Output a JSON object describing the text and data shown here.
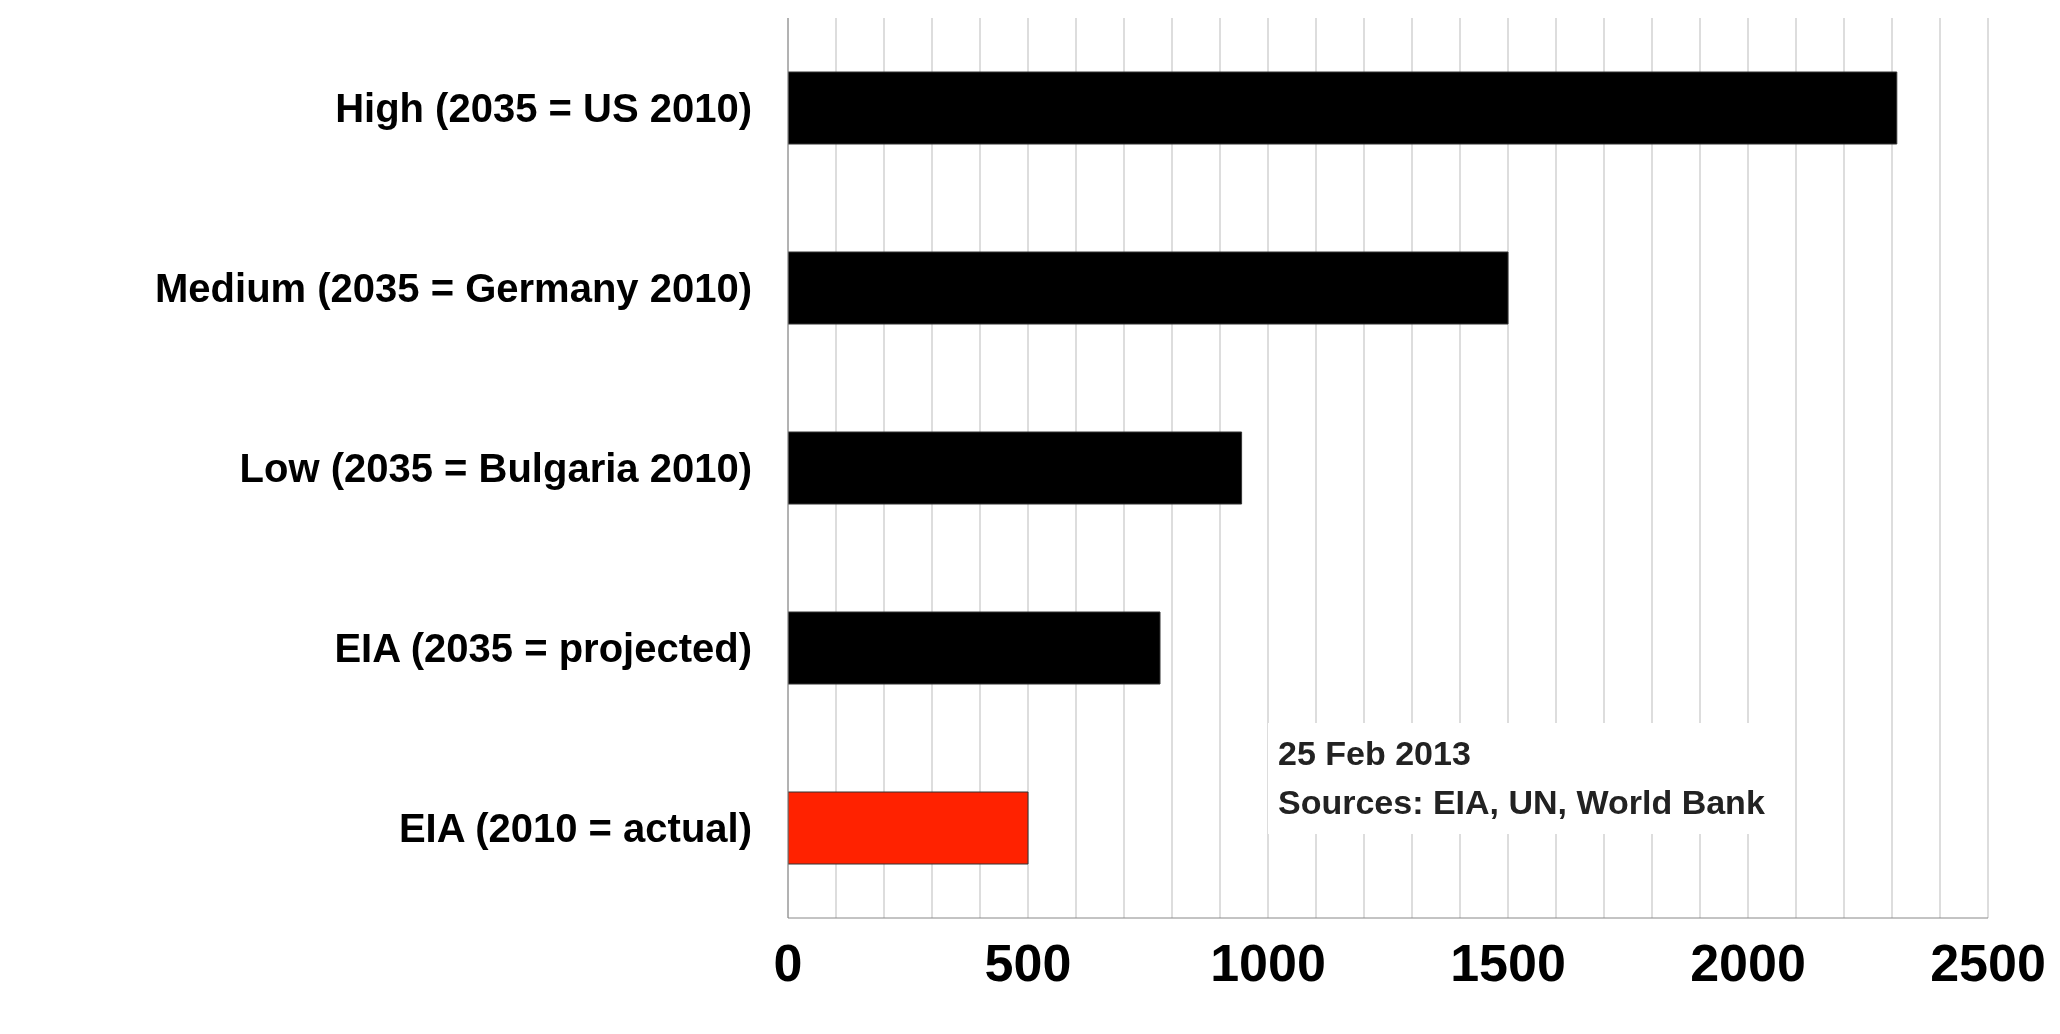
{
  "chart_data": {
    "type": "bar",
    "orientation": "horizontal",
    "categories": [
      "High (2035 = US 2010)",
      "Medium (2035 = Germany 2010)",
      "Low (2035 = Bulgaria 2010)",
      "EIA (2035 = projected)",
      "EIA (2010 = actual)"
    ],
    "values": [
      2310,
      1500,
      945,
      775,
      500
    ],
    "colors": [
      "#000000",
      "#000000",
      "#000000",
      "#000000",
      "#ff2200"
    ],
    "xlim": [
      0,
      2500
    ],
    "xticks": [
      0,
      {
        "value": 100,
        "label": null
      },
      {
        "value": 200,
        "label": null
      },
      {
        "value": 300,
        "label": null
      },
      {
        "value": 400,
        "label": null
      },
      500,
      {
        "value": 600,
        "label": null
      },
      {
        "value": 700,
        "label": null
      },
      {
        "value": 800,
        "label": null
      },
      {
        "value": 900,
        "label": null
      },
      1000,
      {
        "value": 1100,
        "label": null
      },
      {
        "value": 1200,
        "label": null
      },
      {
        "value": 1300,
        "label": null
      },
      {
        "value": 1400,
        "label": null
      },
      1500,
      {
        "value": 1600,
        "label": null
      },
      {
        "value": 1700,
        "label": null
      },
      {
        "value": 1800,
        "label": null
      },
      {
        "value": 1900,
        "label": null
      },
      2000,
      {
        "value": 2100,
        "label": null
      },
      {
        "value": 2200,
        "label": null
      },
      {
        "value": 2300,
        "label": null
      },
      {
        "value": 2400,
        "label": null
      },
      2500
    ],
    "grid": "x",
    "annotations": [
      "25 Feb 2013",
      "Sources: EIA, UN, World Bank"
    ]
  }
}
